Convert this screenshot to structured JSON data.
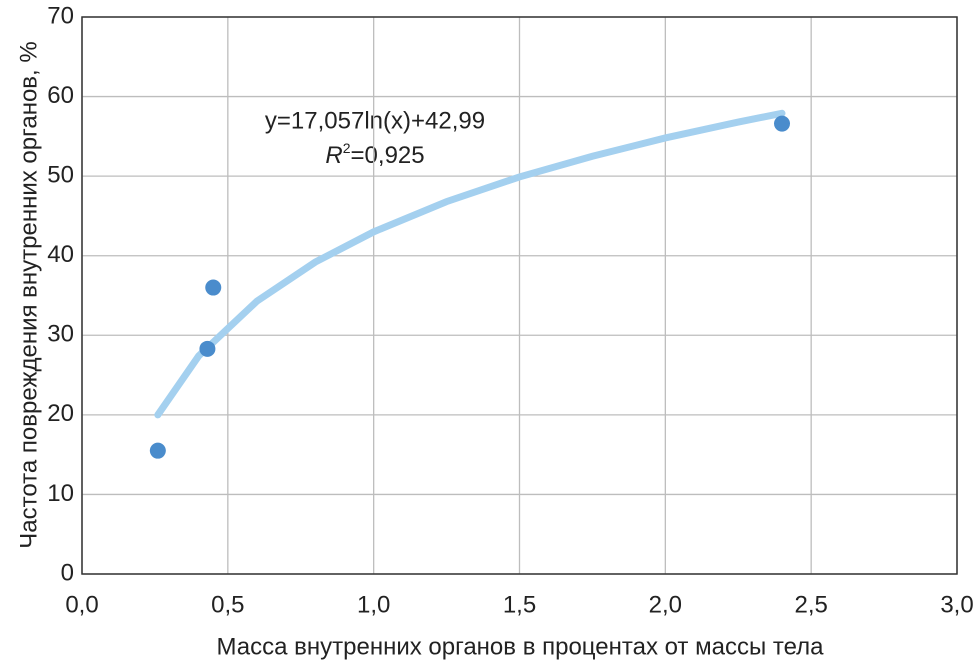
{
  "chart_data": {
    "type": "scatter",
    "xlabel": "Масса внутренних органов в процентах от массы тела",
    "ylabel": "Частота повреждения внутренних органов, %",
    "equation": "y=17,057ln(x)+42,99",
    "r2_symbol": "R",
    "r2_exponent": "2",
    "r2_value": "=0,925",
    "series": [
      {
        "color": "#4a8ccc",
        "x": [
          0.26,
          0.43,
          0.45,
          2.4
        ],
        "values": [
          15.5,
          28.3,
          36,
          56.6
        ]
      },
      {
        "color": "#a4d0ef",
        "x": [
          0.26,
          0.4,
          0.6,
          0.8,
          1.0,
          1.25,
          1.5,
          1.75,
          2.0,
          2.25,
          2.4
        ],
        "values": [
          20.0,
          27.4,
          34.3,
          39.2,
          43.0,
          46.8,
          49.9,
          52.5,
          54.8,
          56.8,
          57.9
        ]
      }
    ],
    "xlim": [
      0,
      3
    ],
    "ylim": [
      0,
      70
    ],
    "xticks": [
      {
        "value": 0,
        "label": "0,0"
      },
      {
        "value": 0.5,
        "label": "0,5"
      },
      {
        "value": 1,
        "label": "1,0"
      },
      {
        "value": 1.5,
        "label": "1,5"
      },
      {
        "value": 2,
        "label": "2,0"
      },
      {
        "value": 2.5,
        "label": "2,5"
      },
      {
        "value": 3,
        "label": "3,0"
      }
    ],
    "yticks": [
      0,
      10,
      20,
      30,
      40,
      50,
      60,
      70
    ],
    "grid": true
  }
}
